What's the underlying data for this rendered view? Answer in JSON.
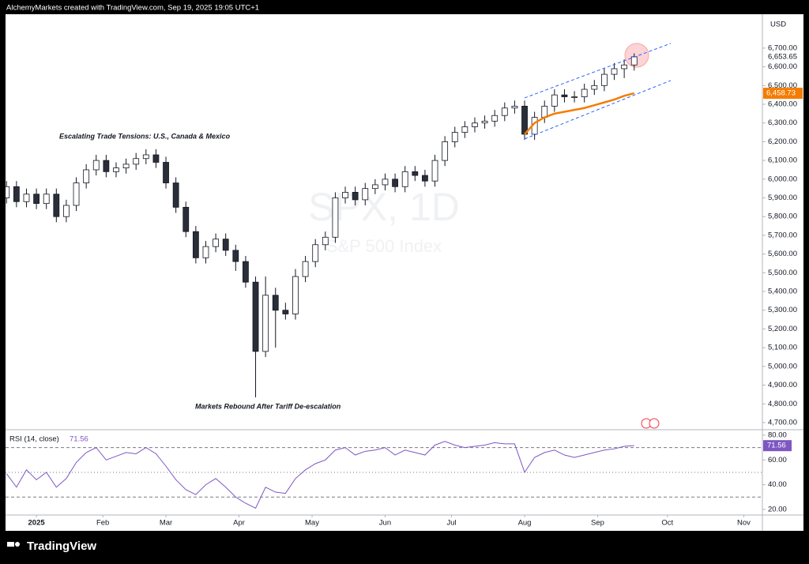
{
  "header": {
    "text": "AlchemyMarkets created with TradingView.com, Sep 19, 2025 19:05 UTC+1"
  },
  "footer": {
    "brand": "TradingView"
  },
  "chart_data": [
    {
      "type": "candlestick",
      "title": "SPX, 1D",
      "subtitle": "S&P 500 Index",
      "currency": "USD",
      "x": [
        -9,
        -6,
        -3,
        0,
        3,
        6,
        9,
        12,
        15,
        18,
        21,
        24,
        27,
        30,
        33,
        36,
        39,
        42,
        45,
        48,
        51,
        54,
        57,
        60,
        63,
        66,
        69,
        72,
        75,
        78,
        81,
        84,
        87,
        90,
        93,
        96,
        99,
        102,
        105,
        108,
        111,
        114,
        117,
        120,
        123,
        126,
        129,
        132,
        135,
        138,
        141,
        144,
        147,
        150,
        153,
        156,
        159,
        162,
        165,
        168,
        171,
        174,
        177,
        180
      ],
      "open": [
        5900,
        5960,
        5880,
        5920,
        5870,
        5920,
        5800,
        5860,
        5980,
        6050,
        6100,
        6040,
        6060,
        6080,
        6110,
        6130,
        6090,
        5980,
        5850,
        5720,
        5580,
        5640,
        5680,
        5620,
        5560,
        5450,
        5080,
        5380,
        5300,
        5280,
        5480,
        5560,
        5650,
        5690,
        5900,
        5930,
        5890,
        5950,
        5970,
        6000,
        5960,
        6040,
        6020,
        5990,
        6100,
        6200,
        6250,
        6280,
        6300,
        6310,
        6340,
        6380,
        6390,
        6240,
        6330,
        6390,
        6450,
        6440,
        6440,
        6480,
        6500,
        6560,
        6590,
        6610
      ],
      "high": [
        5990,
        5990,
        5950,
        5950,
        5950,
        5950,
        5890,
        6010,
        6080,
        6130,
        6130,
        6090,
        6110,
        6140,
        6160,
        6160,
        6120,
        6010,
        5880,
        5750,
        5670,
        5710,
        5710,
        5650,
        5590,
        5480,
        5480,
        5420,
        5340,
        5520,
        5590,
        5680,
        5720,
        5930,
        5960,
        5960,
        5980,
        6000,
        6030,
        6030,
        6070,
        6070,
        6050,
        6130,
        6230,
        6280,
        6310,
        6330,
        6340,
        6370,
        6410,
        6420,
        6420,
        6360,
        6420,
        6480,
        6480,
        6470,
        6510,
        6530,
        6590,
        6620,
        6640,
        6672
      ],
      "low": [
        5870,
        5850,
        5850,
        5840,
        5840,
        5770,
        5770,
        5830,
        5950,
        6020,
        6010,
        6010,
        6030,
        6050,
        6080,
        6060,
        5950,
        5820,
        5690,
        5550,
        5550,
        5610,
        5590,
        5510,
        5420,
        4835,
        5050,
        5100,
        5250,
        5250,
        5450,
        5530,
        5620,
        5660,
        5870,
        5860,
        5860,
        5920,
        5940,
        5930,
        5930,
        5990,
        5960,
        5960,
        6070,
        6170,
        6220,
        6250,
        6270,
        6280,
        6310,
        6350,
        6210,
        6210,
        6300,
        6360,
        6410,
        6410,
        6410,
        6450,
        6470,
        6530,
        6540,
        6580
      ],
      "close": [
        5960,
        5880,
        5920,
        5870,
        5920,
        5800,
        5860,
        5980,
        6050,
        6100,
        6040,
        6060,
        6080,
        6110,
        6130,
        6090,
        5980,
        5850,
        5720,
        5580,
        5640,
        5680,
        5620,
        5560,
        5450,
        5080,
        5380,
        5300,
        5280,
        5480,
        5560,
        5650,
        5690,
        5900,
        5930,
        5890,
        5950,
        5970,
        6000,
        5960,
        6040,
        6020,
        5990,
        6100,
        6200,
        6250,
        6280,
        6300,
        6310,
        6340,
        6380,
        6390,
        6240,
        6330,
        6390,
        6450,
        6440,
        6440,
        6480,
        6500,
        6560,
        6590,
        6610,
        6653.65
      ],
      "last_label": "6,653.65",
      "up_color": "#ffffff",
      "down_color": "#2a2e39",
      "outline_color": "#131722",
      "moving_average": {
        "color": "#f57c00",
        "x": [
          147,
          150,
          153,
          156,
          159,
          162,
          165,
          168,
          171,
          174,
          177,
          180
        ],
        "values": [
          6240,
          6300,
          6330,
          6350,
          6360,
          6370,
          6380,
          6395,
          6410,
          6425,
          6445,
          6458.73
        ],
        "last_label": "6,458.73"
      },
      "channel": {
        "color": "#2962ff",
        "lines": [
          {
            "x": [
              147,
              191
            ],
            "values": [
              6434,
              6725
            ]
          },
          {
            "x": [
              147,
              191
            ],
            "values": [
              6215,
              6527
            ]
          }
        ]
      },
      "annotations": [
        "Escalating Trade Tensions: U.S., Canada & Mexico",
        "Markets Rebound After Tariff De-escalation"
      ],
      "xlim": [
        -9.3,
        218.6
      ],
      "xticks": [
        {
          "value": 0,
          "label": "2025"
        },
        {
          "value": 20,
          "label": "Feb"
        },
        {
          "value": 39,
          "label": "Mar"
        },
        {
          "value": 61,
          "label": "Apr"
        },
        {
          "value": 83,
          "label": "May"
        },
        {
          "value": 105,
          "label": "Jun"
        },
        {
          "value": 125,
          "label": "Jul"
        },
        {
          "value": 147,
          "label": "Aug"
        },
        {
          "value": 169,
          "label": "Sep"
        },
        {
          "value": 190,
          "label": "Oct"
        },
        {
          "value": 213,
          "label": "Nov"
        }
      ],
      "ylim": [
        4666,
        6881
      ],
      "yticks": [
        {
          "value": 4700,
          "label": "4,700.00"
        },
        {
          "value": 4800,
          "label": "4,800.00"
        },
        {
          "value": 4900,
          "label": "4,900.00"
        },
        {
          "value": 5000,
          "label": "5,000.00"
        },
        {
          "value": 5100,
          "label": "5,100.00"
        },
        {
          "value": 5200,
          "label": "5,200.00"
        },
        {
          "value": 5300,
          "label": "5,300.00"
        },
        {
          "value": 5400,
          "label": "5,400.00"
        },
        {
          "value": 5500,
          "label": "5,500.00"
        },
        {
          "value": 5600,
          "label": "5,600.00"
        },
        {
          "value": 5700,
          "label": "5,700.00"
        },
        {
          "value": 5800,
          "label": "5,800.00"
        },
        {
          "value": 5900,
          "label": "5,900.00"
        },
        {
          "value": 6000,
          "label": "6,000.00"
        },
        {
          "value": 6100,
          "label": "6,100.00"
        },
        {
          "value": 6200,
          "label": "6,200.00"
        },
        {
          "value": 6300,
          "label": "6,300.00"
        },
        {
          "value": 6400,
          "label": "6,400.00"
        },
        {
          "value": 6500,
          "label": "6,500.00"
        },
        {
          "value": 6600,
          "label": "6,600.00"
        },
        {
          "value": 6700,
          "label": "6,700.00"
        }
      ]
    },
    {
      "type": "line",
      "title": "RSI (14, close)",
      "color": "#7e57c2",
      "x": [
        -9,
        -6,
        -3,
        0,
        3,
        6,
        9,
        12,
        15,
        18,
        21,
        24,
        27,
        30,
        33,
        36,
        39,
        42,
        45,
        48,
        51,
        54,
        57,
        60,
        63,
        66,
        69,
        72,
        75,
        78,
        81,
        84,
        87,
        90,
        93,
        96,
        99,
        102,
        105,
        108,
        111,
        114,
        117,
        120,
        123,
        126,
        129,
        132,
        135,
        138,
        141,
        144,
        147,
        150,
        153,
        156,
        159,
        162,
        165,
        168,
        171,
        174,
        177,
        180
      ],
      "values": [
        49,
        38,
        52,
        44,
        50,
        38,
        45,
        58,
        66,
        70,
        60,
        63,
        66,
        65,
        70,
        65,
        55,
        44,
        36,
        32,
        40,
        45,
        38,
        30,
        25,
        21,
        38,
        34,
        33,
        45,
        52,
        57,
        60,
        68,
        70,
        64,
        67,
        68,
        70,
        64,
        68,
        66,
        64,
        72,
        75,
        72,
        70,
        71,
        72,
        74,
        73,
        73,
        50,
        62,
        66,
        68,
        64,
        62,
        64,
        66,
        68,
        69,
        71,
        71.56
      ],
      "levels": [
        70,
        50,
        30
      ],
      "xlim": [
        -9.3,
        218.6
      ],
      "ylim": [
        15.5,
        83.8
      ],
      "yticks": [
        {
          "value": 20,
          "label": "20.00"
        },
        {
          "value": 40,
          "label": "40.00"
        },
        {
          "value": 60,
          "label": "60.00"
        },
        {
          "value": 80,
          "label": "80.00"
        }
      ]
    }
  ]
}
